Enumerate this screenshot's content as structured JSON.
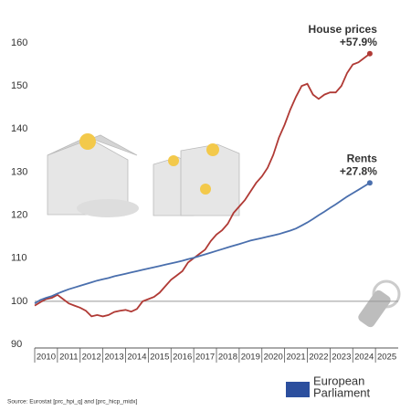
{
  "chart_data": {
    "type": "line",
    "annotations": [
      {
        "text": "House prices",
        "series": 0
      },
      {
        "text": "+57.9%",
        "series": 0
      },
      {
        "text": "Rents",
        "series": 1
      },
      {
        "text": "+27.8%",
        "series": 1
      }
    ],
    "categories": [
      "2010",
      "2011",
      "2012",
      "2013",
      "2014",
      "2015",
      "2016",
      "2017",
      "2018",
      "2019",
      "2020",
      "2021",
      "2022",
      "2023",
      "2024",
      "2025"
    ],
    "x": [
      2010,
      2010.25,
      2010.5,
      2010.75,
      2011,
      2011.25,
      2011.5,
      2011.75,
      2012,
      2012.25,
      2012.5,
      2012.75,
      2013,
      2013.25,
      2013.5,
      2013.75,
      2014,
      2014.25,
      2014.5,
      2014.75,
      2015,
      2015.25,
      2015.5,
      2015.75,
      2016,
      2016.25,
      2016.5,
      2016.75,
      2017,
      2017.25,
      2017.5,
      2017.75,
      2018,
      2018.25,
      2018.5,
      2018.75,
      2019,
      2019.25,
      2019.5,
      2019.75,
      2020,
      2020.25,
      2020.5,
      2020.75,
      2021,
      2021.25,
      2021.5,
      2021.75,
      2022,
      2022.25,
      2022.5,
      2022.75,
      2023,
      2023.25,
      2023.5,
      2023.75,
      2024,
      2024.25,
      2024.5,
      2024.75
    ],
    "series": [
      {
        "name": "House prices",
        "color": "#b03a35",
        "values": [
          99,
          99.8,
          100.5,
          100.8,
          101.5,
          100.5,
          99.5,
          99,
          98.5,
          97.8,
          96.5,
          96.8,
          96.5,
          96.8,
          97.5,
          97.8,
          98,
          97.6,
          98.2,
          100,
          100.5,
          101,
          102,
          103.5,
          105,
          106,
          107,
          109,
          110,
          111,
          112,
          114,
          115.5,
          116.5,
          118,
          120.5,
          122,
          123.5,
          125.5,
          127.5,
          129,
          131,
          134,
          138,
          141,
          144.5,
          147.5,
          150,
          150.5,
          148,
          147,
          148,
          148.5,
          148.5,
          150,
          153,
          155,
          155.5,
          156.5,
          157.5
        ]
      },
      {
        "name": "Rents",
        "color": "#4a6fad",
        "values": [
          99.5,
          100.3,
          100.8,
          101.2,
          101.8,
          102.3,
          102.8,
          103.2,
          103.6,
          104,
          104.4,
          104.8,
          105.1,
          105.4,
          105.8,
          106.1,
          106.4,
          106.7,
          107,
          107.3,
          107.6,
          107.9,
          108.2,
          108.5,
          108.8,
          109.1,
          109.4,
          109.8,
          110.1,
          110.5,
          110.9,
          111.3,
          111.7,
          112.1,
          112.5,
          112.9,
          113.3,
          113.7,
          114.1,
          114.4,
          114.7,
          115,
          115.3,
          115.6,
          116,
          116.4,
          116.9,
          117.6,
          118.3,
          119.1,
          120,
          120.8,
          121.7,
          122.5,
          123.4,
          124.3,
          125.1,
          125.9,
          126.7,
          127.5
        ]
      }
    ],
    "xlim": [
      2010,
      2026
    ],
    "ylim": [
      90,
      160
    ],
    "yticks": [
      90,
      100,
      110,
      120,
      130,
      140,
      150,
      160
    ],
    "reference_line": 100,
    "grid": false,
    "source": "Source: Eurostat [prc_hpi_q] and [prc_hicp_midx]",
    "logo": [
      "European",
      "Parliament"
    ]
  }
}
